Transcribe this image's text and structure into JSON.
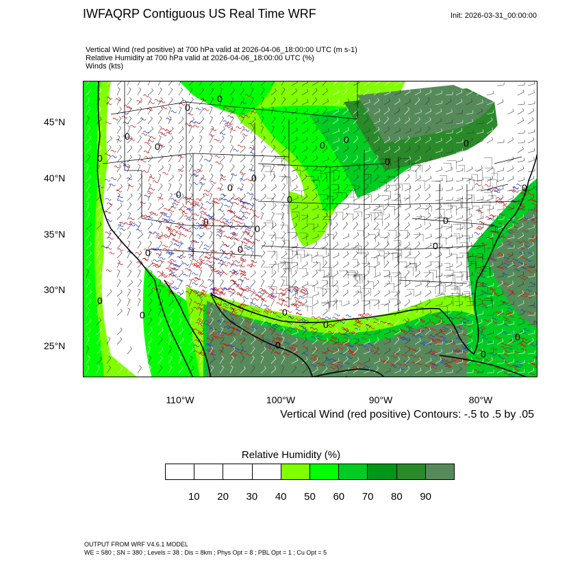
{
  "header": {
    "title": "IWFAQRP Contiguous US Real Time WRF",
    "init": "Init: 2026-03-31_00:00:00",
    "subtitle_lines": [
      "Vertical Wind (red positive) at 700 hPa valid at 2026-04-06_18:00:00 UTC   (m s-1)",
      "Relative Humidity at 700 hPa valid at 2026-04-06_18:00:00 UTC   (%)",
      "Winds   (kts)"
    ]
  },
  "map": {
    "lat_labels": [
      "45°N",
      "40°N",
      "35°N",
      "30°N",
      "25°N"
    ],
    "lon_labels": [
      "110°W",
      "100°W",
      "90°W",
      "80°W"
    ],
    "contour_label": "0",
    "contour_note": "Vertical Wind (red positive) Contours: -.5 to .5 by .05",
    "colors": {
      "rh_50": "#80ff00",
      "rh_60": "#00ff00",
      "rh_70": "#00cc22",
      "rh_80": "#00961a",
      "rh_90": "#2a8a2a",
      "rh_95": "#568a5a",
      "upward": "#dd1111",
      "downward": "#1a3fd6",
      "coast": "#000000"
    }
  },
  "colorbar": {
    "title": "Relative Humidity  (%)",
    "colors": [
      "#ffffff",
      "#ffffff",
      "#ffffff",
      "#ffffff",
      "#80ff00",
      "#00ff00",
      "#00cc22",
      "#00961a",
      "#2a8a2a",
      "#568a5a"
    ],
    "labels": [
      "10",
      "20",
      "30",
      "40",
      "50",
      "60",
      "70",
      "80",
      "90"
    ]
  },
  "footer": {
    "line1": "OUTPUT FROM WRF V4.6.1 MODEL",
    "line2": "WE = 580 ; SN = 380 ; Levels = 38 ; Dis = 8km ; Phys Opt = 8 ; PBL Opt = 1 ; Cu Opt = 5"
  }
}
